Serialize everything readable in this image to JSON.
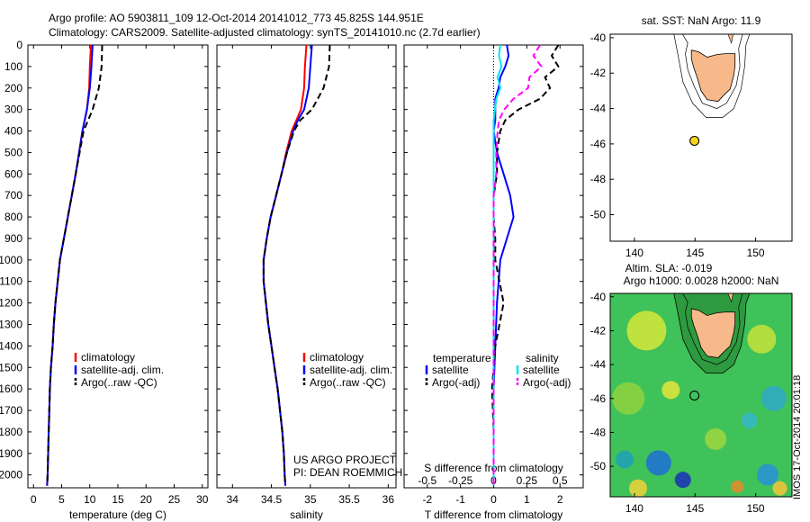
{
  "header": {
    "line1": "Argo profile: AO 5903811_109 12-Oct-2014 20141012_773 45.825S 144.951E",
    "line2": "Climatology: CARS2009. Satellite-adjusted climatology: synTS_20141010.nc (2.7d earlier)"
  },
  "footer_text": {
    "project": "US ARGO PROJECT",
    "pi": "PI: DEAN ROEMMICH",
    "stamp": "IMOS 17-Oct-2014 20:01:18"
  },
  "colors": {
    "climatology": "#ff0000",
    "satellite": "#0000ff",
    "argo": "#000000",
    "salinity_satellite": "#00e5ee",
    "salinity_argo": "#ff00ff",
    "land": "#f8b98a",
    "float_marker": "#f5d31f"
  },
  "chart_data": [
    {
      "type": "line",
      "xlabel": "temperature (deg C)",
      "ylabel": "",
      "xlim": [
        -1,
        31
      ],
      "ylim": [
        2060,
        0
      ],
      "xticks": [
        0,
        5,
        10,
        15,
        20,
        25,
        30
      ],
      "yticks": [
        0,
        100,
        200,
        300,
        400,
        500,
        600,
        700,
        800,
        900,
        1000,
        1100,
        1200,
        1300,
        1400,
        1500,
        1600,
        1700,
        1800,
        1900,
        2000
      ],
      "legend": [
        "climatology",
        "satellite-adj. clim.",
        "Argo(..raw -QC)"
      ],
      "depth": [
        0,
        100,
        200,
        300,
        400,
        500,
        600,
        700,
        800,
        900,
        1000,
        1100,
        1200,
        1300,
        1400,
        1500,
        1600,
        1700,
        1800,
        1900,
        2000,
        2050
      ],
      "series": [
        {
          "name": "climatology",
          "values": [
            10.2,
            10.0,
            9.9,
            9.5,
            8.7,
            8.1,
            7.5,
            6.8,
            6.1,
            5.4,
            4.7,
            4.3,
            3.9,
            3.6,
            3.4,
            3.1,
            2.9,
            2.8,
            2.7,
            2.6,
            2.5,
            2.4
          ]
        },
        {
          "name": "satellite-adj. clim.",
          "values": [
            10.5,
            10.3,
            10.0,
            9.5,
            8.7,
            8.1,
            7.5,
            6.8,
            6.1,
            5.4,
            4.7,
            4.3,
            3.9,
            3.6,
            3.4,
            3.1,
            2.9,
            2.8,
            2.7,
            2.6,
            2.5,
            2.4
          ]
        },
        {
          "name": "Argo(..raw -QC)",
          "values": [
            12.2,
            12.1,
            11.6,
            10.5,
            8.9,
            8.2,
            7.5,
            6.8,
            6.1,
            5.4,
            4.7,
            4.3,
            3.9,
            3.6,
            3.4,
            3.1,
            2.9,
            2.8,
            2.7,
            2.6,
            2.5,
            2.4
          ]
        }
      ]
    },
    {
      "type": "line",
      "xlabel": "salinity",
      "xlim": [
        33.8,
        36.1
      ],
      "ylim": [
        2060,
        0
      ],
      "xticks": [
        34,
        34.5,
        35,
        35.5,
        36
      ],
      "legend": [
        "climatology",
        "satellite-adj. clim.",
        "Argo(..raw -QC)"
      ],
      "depth": [
        0,
        100,
        200,
        300,
        350,
        400,
        500,
        600,
        700,
        800,
        900,
        1000,
        1100,
        1200,
        1300,
        1400,
        1500,
        1600,
        1700,
        1800,
        1900,
        2000,
        2050
      ],
      "series": [
        {
          "name": "climatology",
          "values": [
            34.95,
            34.93,
            34.92,
            34.88,
            34.82,
            34.76,
            34.69,
            34.63,
            34.56,
            34.49,
            34.44,
            34.4,
            34.4,
            34.43,
            34.46,
            34.5,
            34.54,
            34.58,
            34.61,
            34.64,
            34.66,
            34.67,
            34.68
          ]
        },
        {
          "name": "satellite-adj. clim.",
          "values": [
            35.02,
            35.0,
            34.98,
            34.92,
            34.84,
            34.78,
            34.7,
            34.63,
            34.56,
            34.49,
            34.44,
            34.4,
            34.4,
            34.43,
            34.46,
            34.5,
            34.54,
            34.58,
            34.61,
            34.64,
            34.66,
            34.67,
            34.68
          ]
        },
        {
          "name": "Argo(..raw -QC)",
          "values": [
            35.25,
            35.24,
            35.17,
            35.02,
            34.87,
            34.79,
            34.7,
            34.63,
            34.56,
            34.49,
            34.44,
            34.4,
            34.4,
            34.43,
            34.46,
            34.5,
            34.54,
            34.58,
            34.61,
            34.64,
            34.66,
            34.67,
            34.68
          ]
        }
      ]
    },
    {
      "type": "line",
      "title": "S difference from climatology",
      "xlabel": "T difference from climatology",
      "xlim": [
        -2.7,
        2.7
      ],
      "ylim": [
        2060,
        0
      ],
      "xticks": [
        -2,
        -1,
        0,
        1,
        2
      ],
      "top_axis_ticks": [
        "-0.5",
        "-0.25",
        "0",
        "0.25",
        "0.5"
      ],
      "legend_headers": [
        "temperature",
        "salinity"
      ],
      "legend": [
        "satellite",
        "Argo(-adj)",
        "satellite",
        "Argo(-adj)"
      ],
      "depth": [
        0,
        50,
        100,
        150,
        200,
        250,
        300,
        350,
        400,
        500,
        600,
        700,
        800,
        900,
        1000,
        1200,
        1400,
        1600,
        1800,
        2000,
        2050
      ],
      "series": [
        {
          "name": "temperature satellite",
          "values": [
            0.4,
            0.45,
            0.35,
            0.2,
            0.15,
            0.05,
            0.05,
            0.05,
            0.0,
            0.1,
            0.3,
            0.5,
            0.6,
            0.4,
            0.2,
            0.1,
            0.05,
            0.0,
            0.0,
            0.0,
            0.0
          ]
        },
        {
          "name": "temperature Argo(-adj)",
          "values": [
            1.95,
            1.75,
            1.95,
            1.55,
            1.7,
            1.4,
            0.75,
            0.35,
            0.2,
            0.1,
            0.1,
            0.0,
            0.0,
            0.05,
            0.05,
            0.3,
            0.05,
            -0.05,
            0.0,
            0.0,
            0.0
          ]
        },
        {
          "name": "salinity satellite",
          "values": [
            0.05,
            0.04,
            0.06,
            0.03,
            0.05,
            0.02,
            0.01,
            0.0,
            0.0,
            0.0,
            0.0,
            0.0,
            0.0,
            0.0,
            0.0,
            0.0,
            0.0,
            0.0,
            0.0,
            0.0,
            0.0
          ]
        },
        {
          "name": "salinity Argo(-adj)",
          "values": [
            0.35,
            0.3,
            0.36,
            0.27,
            0.26,
            0.15,
            0.08,
            0.04,
            0.03,
            0.02,
            0.02,
            0.0,
            0.0,
            0.0,
            0.0,
            0.0,
            0.0,
            0.0,
            0.0,
            0.0,
            0.0
          ]
        }
      ]
    },
    {
      "type": "scatter",
      "title": "sat. SST: NaN Argo: 11.9",
      "xlim": [
        138,
        153
      ],
      "ylim": [
        -51.5,
        -39.8
      ],
      "xticks": [
        140,
        145,
        150
      ],
      "yticks": [
        -40,
        -42,
        -44,
        -46,
        -48,
        -50
      ],
      "float_position": {
        "lon": 144.951,
        "lat": -45.825
      }
    },
    {
      "type": "heatmap",
      "title": "Altim. SLA: -0.019",
      "subtitle": "Argo h1000: 0.0028 h2000: NaN",
      "xlim": [
        138,
        153
      ],
      "ylim": [
        -51.8,
        -39.8
      ],
      "xticks": [
        140,
        145,
        150
      ],
      "yticks": [
        -40,
        -42,
        -44,
        -46,
        -48,
        -50
      ],
      "float_position": {
        "lon": 144.951,
        "lat": -45.825
      }
    }
  ]
}
